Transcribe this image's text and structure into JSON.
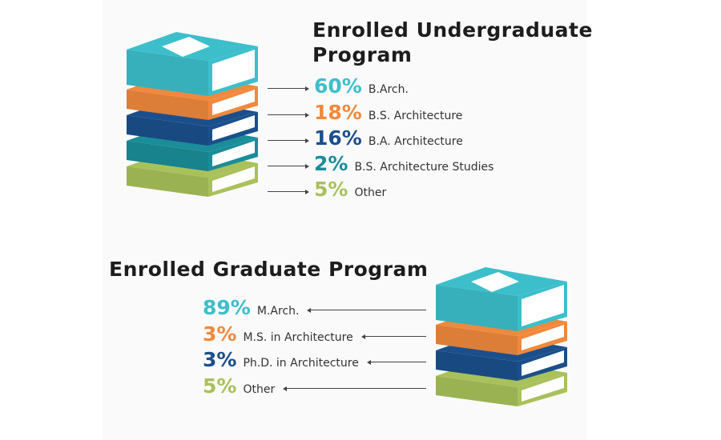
{
  "chart_data": [
    {
      "type": "bar",
      "title": "Enrolled Undergraduate Program",
      "title_lines": [
        "Enrolled Undergraduate",
        "Program"
      ],
      "unit": "%",
      "categories": [
        "B.Arch.",
        "B.S. Architecture",
        "B.A. Architecture",
        "B.S. Architecture Studies",
        "Other"
      ],
      "values": [
        60,
        18,
        16,
        2,
        5
      ],
      "colors": [
        "#3cbfcb",
        "#f0893d",
        "#1b4f8c",
        "#1a8d99",
        "#a9c15a"
      ]
    },
    {
      "type": "bar",
      "title": "Enrolled Graduate Program",
      "unit": "%",
      "categories": [
        "M.Arch.",
        "M.S. in Architecture",
        "Ph.D. in Architecture",
        "Other"
      ],
      "values": [
        89,
        3,
        3,
        5
      ],
      "colors": [
        "#3cbfcb",
        "#f0893d",
        "#1b4f8c",
        "#a9c15a"
      ]
    }
  ],
  "colors": {
    "title": "#1d1d1d",
    "label": "#333333",
    "leader": "#444444",
    "panel": "#fafafa",
    "book_pages": "#ffffff",
    "cover_label": "#ffffff"
  },
  "icons": [
    "book-stack-icon",
    "book-stack-icon"
  ]
}
